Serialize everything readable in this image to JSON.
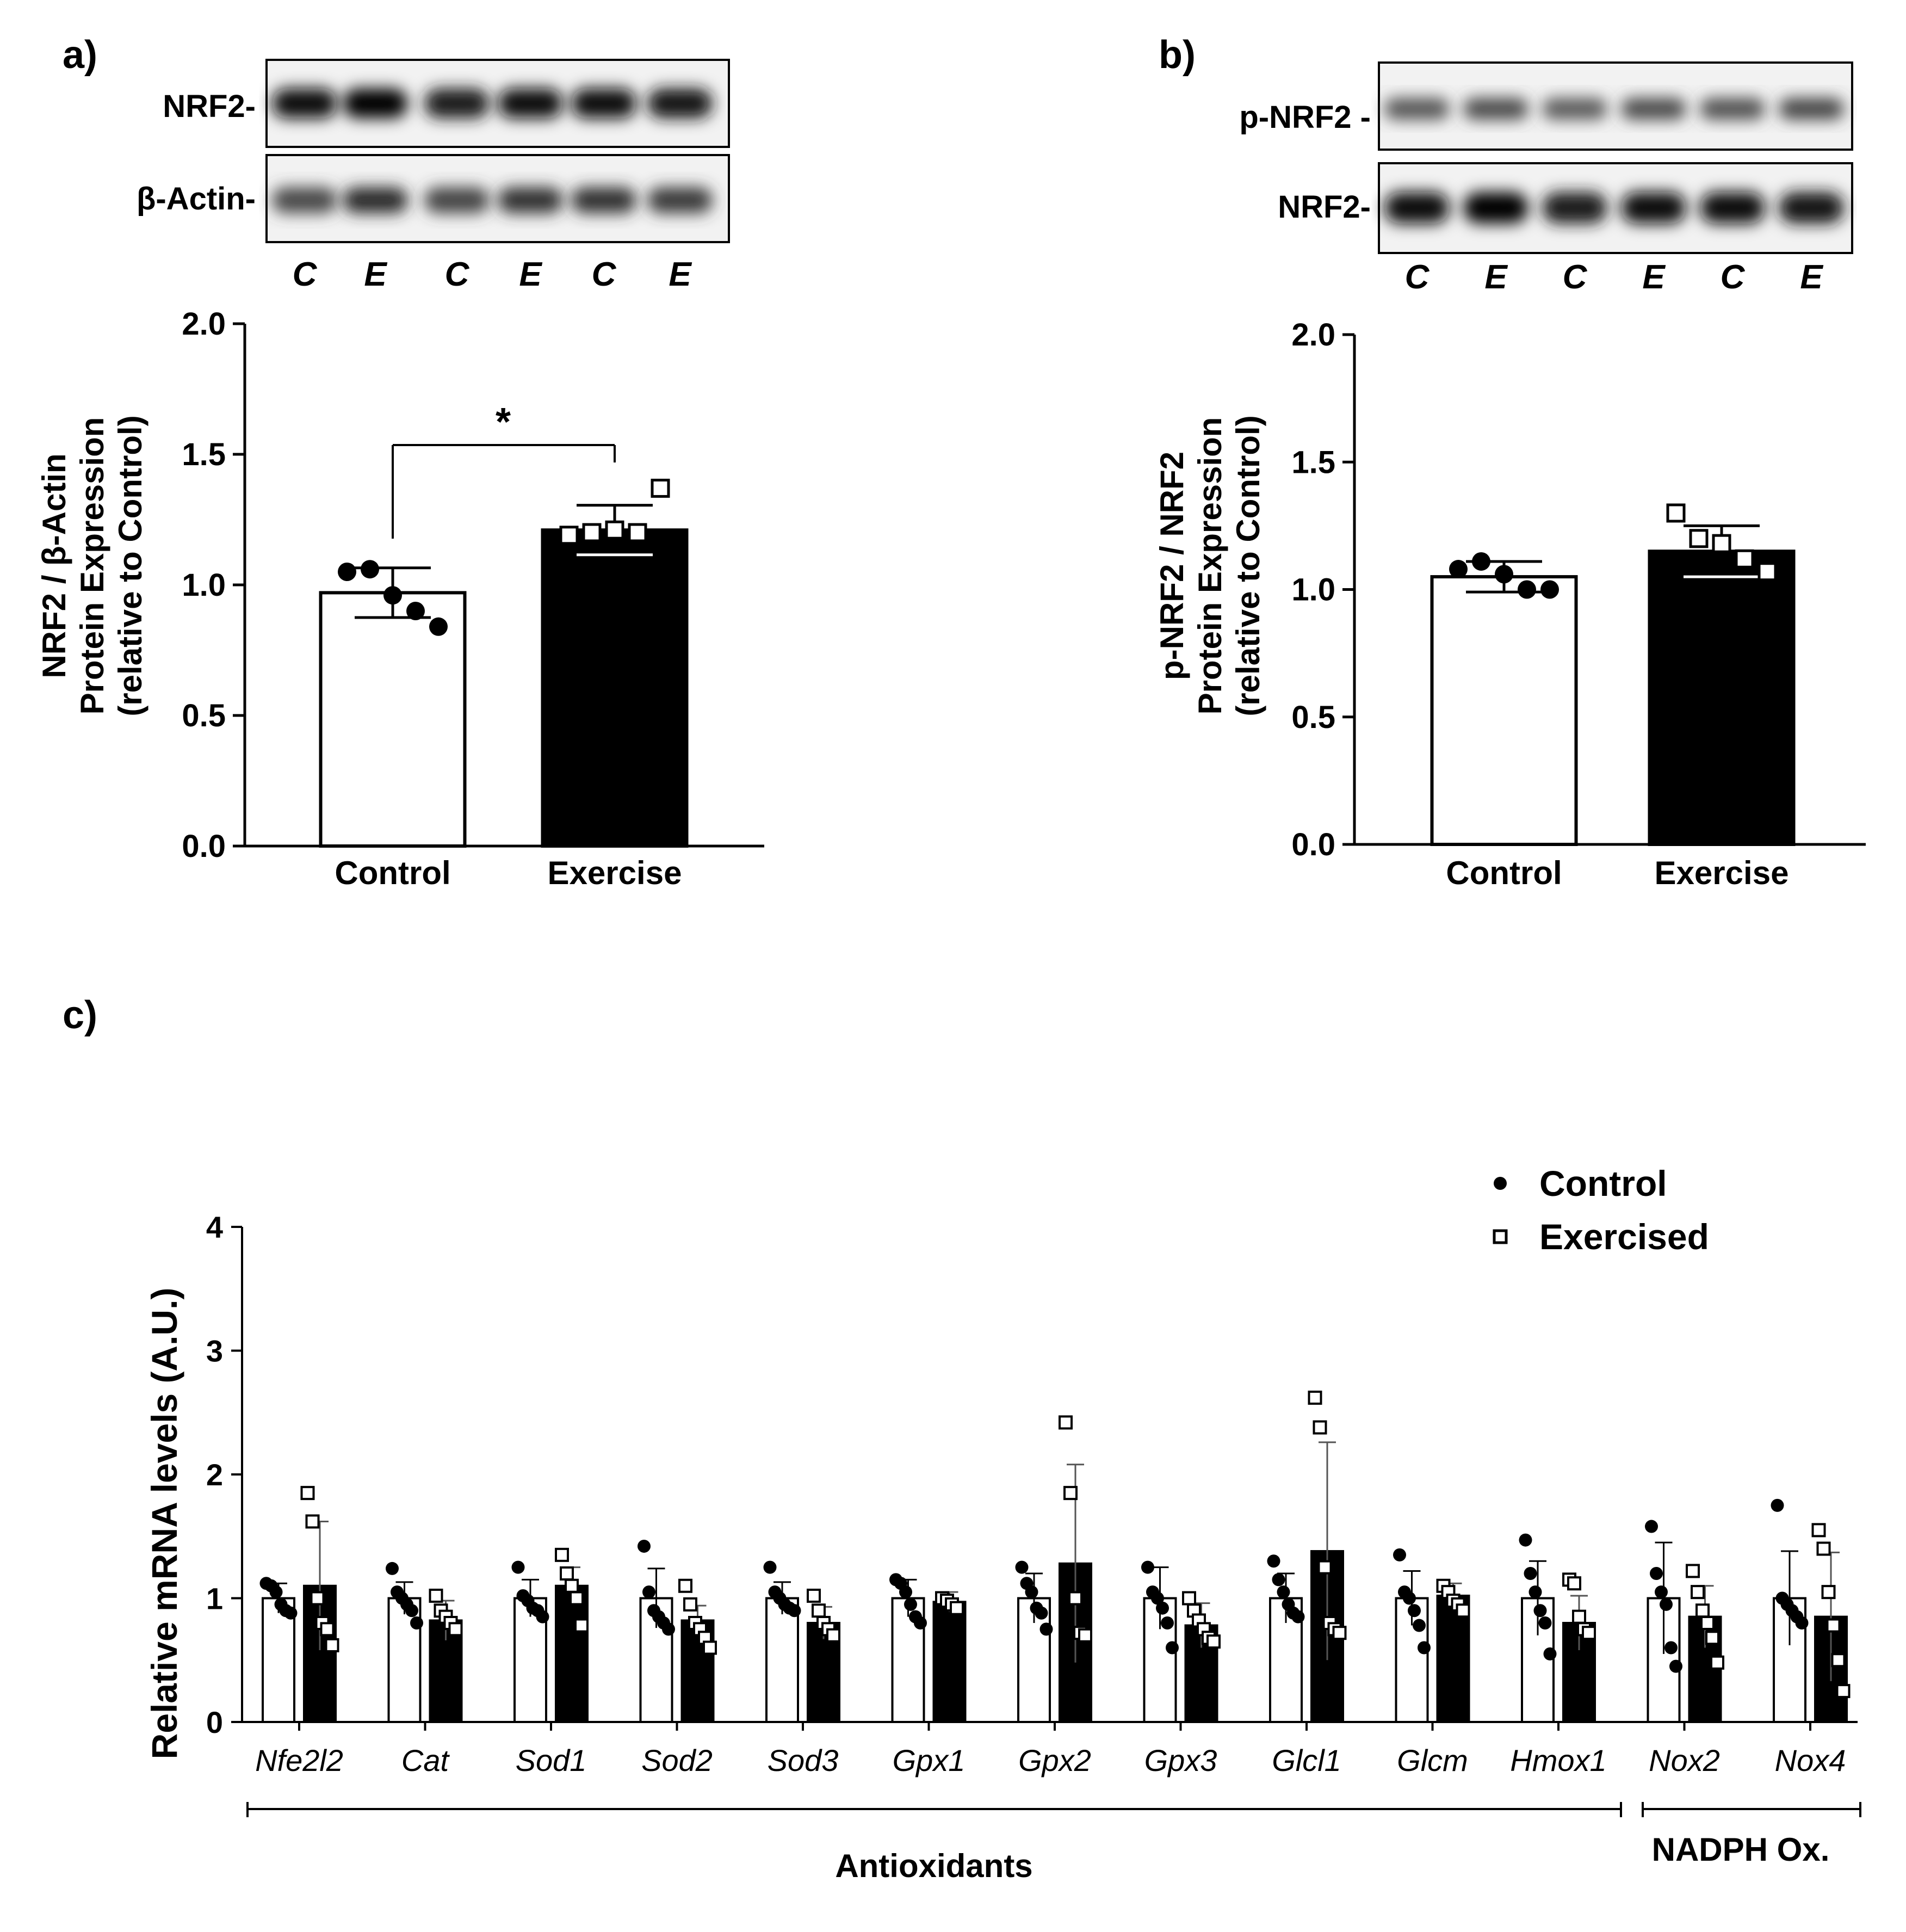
{
  "panels": {
    "a": {
      "label": "a)",
      "blot_labels": [
        "NRF2-",
        "β-Actin-"
      ],
      "lanes": [
        "C",
        "E",
        "C",
        "E",
        "C",
        "E"
      ],
      "chart_data": {
        "type": "bar",
        "categories": [
          "Control",
          "Exercise"
        ],
        "values": [
          0.97,
          1.21
        ],
        "errors": [
          0.095,
          0.095
        ],
        "points": [
          [
            1.05,
            1.06,
            0.96,
            0.9,
            0.84
          ],
          [
            1.19,
            1.2,
            1.21,
            1.2,
            1.37
          ]
        ],
        "ylim": [
          0,
          2.0
        ],
        "yticks": [
          "0.0",
          "0.5",
          "1.0",
          "1.5",
          "2.0"
        ],
        "ylabel_lines": [
          "NRF2 / β-Actin",
          "Protein Expression",
          "(relative to Control)"
        ],
        "significance": "*"
      }
    },
    "b": {
      "label": "b)",
      "blot_labels": [
        "p-NRF2 -",
        "NRF2-"
      ],
      "lanes": [
        "C",
        "E",
        "C",
        "E",
        "C",
        "E"
      ],
      "chart_data": {
        "type": "bar",
        "categories": [
          "Control",
          "Exercise"
        ],
        "values": [
          1.05,
          1.15
        ],
        "errors": [
          0.06,
          0.1
        ],
        "points": [
          [
            1.08,
            1.11,
            1.06,
            1.0,
            1.0
          ],
          [
            1.3,
            1.2,
            1.18,
            1.12,
            1.07
          ]
        ],
        "ylim": [
          0,
          2.0
        ],
        "yticks": [
          "0.0",
          "0.5",
          "1.0",
          "1.5",
          "2.0"
        ],
        "ylabel_lines": [
          "p-NRF2 / NRF2",
          "Protein Expression",
          "(relative to Control)"
        ]
      }
    },
    "c": {
      "label": "c)",
      "chart_data": {
        "type": "bar",
        "ylabel": "Relative mRNA levels (A.U.)",
        "ylim": [
          0,
          4
        ],
        "yticks": [
          "0",
          "1",
          "2",
          "3",
          "4"
        ],
        "legend": [
          {
            "name": "Control",
            "marker": "circle"
          },
          {
            "name": "Exercised",
            "marker": "square"
          }
        ],
        "genes": [
          "Nfe2l2",
          "Cat",
          "Sod1",
          "Sod2",
          "Sod3",
          "Gpx1",
          "Gpx2",
          "Gpx3",
          "Glcl1",
          "Glcm",
          "Hmox1",
          "Nox2",
          "Nox4"
        ],
        "series": [
          {
            "name": "Control",
            "values": [
              1.0,
              1.0,
              1.0,
              1.0,
              1.0,
              1.0,
              1.0,
              1.0,
              1.0,
              1.0,
              1.0,
              1.0,
              1.0
            ],
            "errors": [
              0.12,
              0.13,
              0.15,
              0.24,
              0.13,
              0.15,
              0.2,
              0.25,
              0.2,
              0.22,
              0.3,
              0.45,
              0.38
            ],
            "points": [
              [
                1.12,
                1.1,
                1.05,
                0.95,
                0.9,
                0.88
              ],
              [
                1.24,
                1.05,
                1.0,
                0.95,
                0.9,
                0.8
              ],
              [
                1.25,
                1.02,
                0.98,
                0.92,
                0.9,
                0.85
              ],
              [
                1.42,
                1.05,
                0.9,
                0.85,
                0.8,
                0.75
              ],
              [
                1.25,
                1.05,
                1.0,
                0.95,
                0.92,
                0.9
              ],
              [
                1.15,
                1.12,
                1.05,
                0.95,
                0.85,
                0.8
              ],
              [
                1.25,
                1.12,
                1.05,
                0.92,
                0.88,
                0.75
              ],
              [
                1.25,
                1.05,
                1.0,
                0.92,
                0.8,
                0.6
              ],
              [
                1.3,
                1.15,
                1.05,
                0.95,
                0.88,
                0.85
              ],
              [
                1.35,
                1.05,
                1.0,
                0.9,
                0.78,
                0.6
              ],
              [
                1.47,
                1.2,
                1.05,
                0.9,
                0.8,
                0.55
              ],
              [
                1.58,
                1.2,
                1.05,
                0.95,
                0.6,
                0.45
              ],
              [
                1.75,
                1.0,
                0.95,
                0.9,
                0.85,
                0.8
              ]
            ]
          },
          {
            "name": "Exercised",
            "values": [
              1.1,
              0.82,
              1.1,
              0.82,
              0.8,
              0.97,
              1.28,
              0.78,
              1.38,
              1.02,
              0.8,
              0.85,
              0.85
            ],
            "errors": [
              0.52,
              0.16,
              0.15,
              0.12,
              0.13,
              0.08,
              0.8,
              0.18,
              0.88,
              0.1,
              0.22,
              0.25,
              0.52
            ],
            "points": [
              [
                1.85,
                1.62,
                1.0,
                0.8,
                0.75,
                0.62
              ],
              [
                1.02,
                0.9,
                0.85,
                0.8,
                0.75
              ],
              [
                1.35,
                1.2,
                1.1,
                1.0,
                0.78
              ],
              [
                1.1,
                0.95,
                0.8,
                0.75,
                0.68,
                0.6
              ],
              [
                1.02,
                0.9,
                0.8,
                0.75,
                0.7
              ],
              [
                1.0,
                0.98,
                0.95,
                0.92
              ],
              [
                2.42,
                1.85,
                1.0,
                0.72,
                0.7
              ],
              [
                1.0,
                0.9,
                0.82,
                0.75,
                0.68,
                0.65
              ],
              [
                2.62,
                2.38,
                1.25,
                0.8,
                0.75,
                0.72
              ],
              [
                1.1,
                1.05,
                0.98,
                0.95,
                0.9
              ],
              [
                1.15,
                1.12,
                0.85,
                0.75,
                0.72
              ],
              [
                1.22,
                1.05,
                0.9,
                0.8,
                0.68,
                0.48
              ],
              [
                1.55,
                1.4,
                1.05,
                0.78,
                0.5,
                0.25
              ]
            ]
          }
        ],
        "groups": [
          {
            "label": "Antioxidants",
            "from": 0,
            "to": 10
          },
          {
            "label": "NADPH Ox.",
            "from": 11,
            "to": 12
          }
        ]
      }
    }
  }
}
